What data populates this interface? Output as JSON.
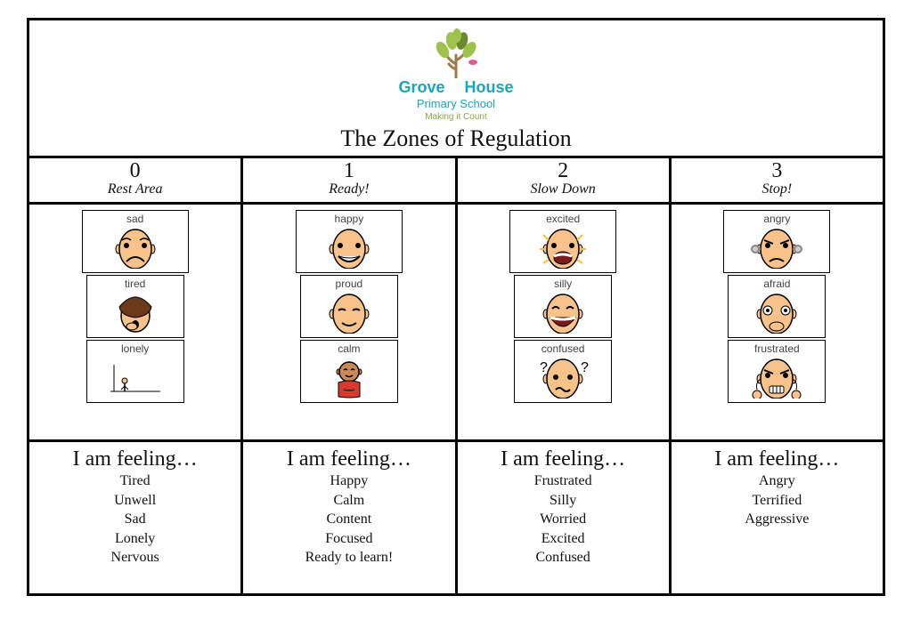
{
  "school": {
    "name_part1": "Grove",
    "name_part2": "House",
    "subtitle": "Primary School",
    "tagline": "Making it Count",
    "logo_leaf_color": "#9fc24d",
    "logo_leaf_dark": "#6b8a2e",
    "logo_trunk_color": "#a07a4a",
    "logo_text_color": "#1aa6b7",
    "logo_accent_pink": "#e05a8a"
  },
  "title": "The Zones of Regulation",
  "zones": [
    {
      "num": "0",
      "label": "Rest Area",
      "emotions": [
        {
          "name": "sad",
          "face_color": "#f8c38a",
          "expr": "sad"
        },
        {
          "name": "tired",
          "face_color": "#f8c38a",
          "expr": "tired",
          "hair": "#6a3a1a"
        },
        {
          "name": "lonely",
          "face_color": "#f8c38a",
          "expr": "lonely"
        }
      ],
      "feeling_title": "I am feeling…",
      "feelings": [
        "Tired",
        "Unwell",
        "Sad",
        "Lonely",
        "Nervous"
      ]
    },
    {
      "num": "1",
      "label": "Ready!",
      "emotions": [
        {
          "name": "happy",
          "face_color": "#f8c38a",
          "expr": "happy"
        },
        {
          "name": "proud",
          "face_color": "#f8c38a",
          "expr": "proud"
        },
        {
          "name": "calm",
          "face_color": "#c98a5a",
          "expr": "calm",
          "shirt": "#d43a2e"
        }
      ],
      "feeling_title": "I am feeling…",
      "feelings": [
        "Happy",
        "Calm",
        "Content",
        "Focused",
        "Ready to learn!"
      ]
    },
    {
      "num": "2",
      "label": "Slow Down",
      "emotions": [
        {
          "name": "excited",
          "face_color": "#f8c38a",
          "expr": "excited"
        },
        {
          "name": "silly",
          "face_color": "#f8c38a",
          "expr": "silly"
        },
        {
          "name": "confused",
          "face_color": "#f8c38a",
          "expr": "confused"
        }
      ],
      "feeling_title": "I am feeling…",
      "feelings": [
        "Frustrated",
        "Silly",
        "Worried",
        "Excited",
        "Confused"
      ]
    },
    {
      "num": "3",
      "label": "Stop!",
      "emotions": [
        {
          "name": "angry",
          "face_color": "#f8c38a",
          "expr": "angry"
        },
        {
          "name": "afraid",
          "face_color": "#f8c38a",
          "expr": "afraid"
        },
        {
          "name": "frustrated",
          "face_color": "#f8c38a",
          "expr": "frustrated"
        }
      ],
      "feeling_title": "I am feeling…",
      "feelings": [
        "Angry",
        "Terrified",
        "Aggressive"
      ]
    }
  ],
  "colors": {
    "border": "#000000",
    "background": "#fefefe",
    "text": "#111111"
  }
}
